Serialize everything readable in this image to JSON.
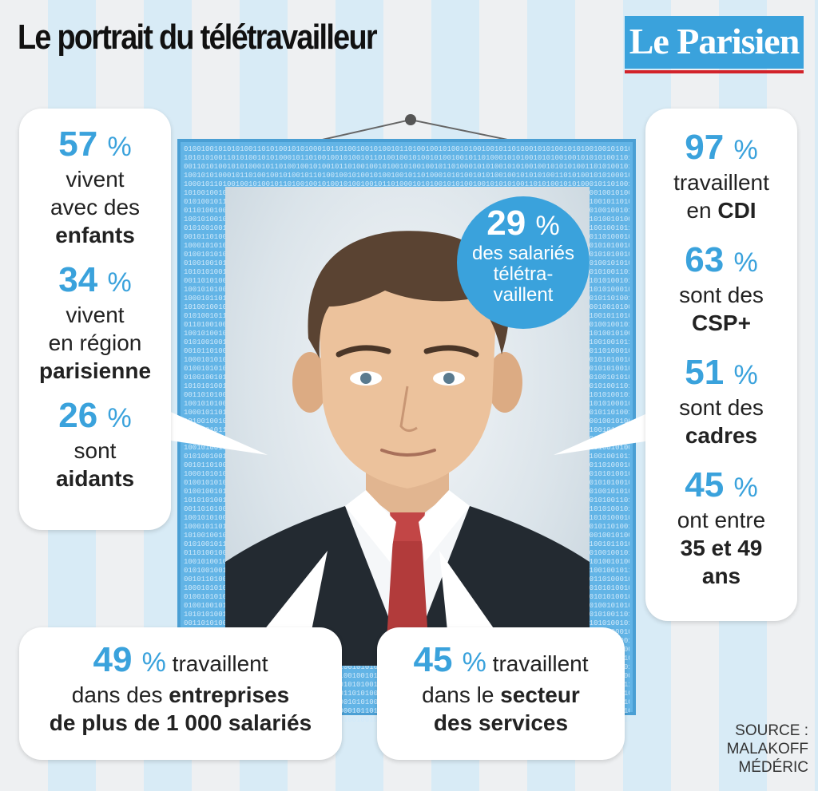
{
  "title": "Le portrait du télétravailleur",
  "logo": "Le Parisien",
  "source": [
    "SOURCE :",
    "MALAKOFF",
    "MÉDÉRIC"
  ],
  "binary_pattern": "0100100101010100110101001010100010110100100101001011010010010100101001001011010001010100101",
  "center_bubble": {
    "value": "29",
    "symbol": "%",
    "lines": [
      "des salariés",
      "télétra-",
      "vaillent"
    ]
  },
  "left_card": [
    {
      "value": "57",
      "symbol": "%",
      "lines": [
        "vivent",
        "avec des"
      ],
      "bold": "enfants"
    },
    {
      "value": "34",
      "symbol": "%",
      "lines": [
        "vivent",
        "en région"
      ],
      "bold": "parisienne"
    },
    {
      "value": "26",
      "symbol": "%",
      "lines": [
        "sont"
      ],
      "bold": "aidants"
    }
  ],
  "right_card": [
    {
      "value": "97",
      "symbol": "%",
      "line1": "travaillent",
      "pre": "en ",
      "bold": "CDI"
    },
    {
      "value": "63",
      "symbol": "%",
      "line1": "sont des",
      "pre": "",
      "bold": "CSP+"
    },
    {
      "value": "51",
      "symbol": "%",
      "line1": "sont des",
      "pre": "",
      "bold": "cadres"
    },
    {
      "value": "45",
      "symbol": "%",
      "line1": "ont entre",
      "pre": "",
      "bold": "35 et 49",
      "bold2": "ans"
    }
  ],
  "bottom_left": {
    "value": "49",
    "symbol": "%",
    "after": " travaillent",
    "line2_pre": "dans des ",
    "line2_bold": "entreprises",
    "line3_bold": "de plus de 1 000 salariés"
  },
  "bottom_right": {
    "value": "45",
    "symbol": "%",
    "after": " travaillent",
    "line2_pre": "dans le ",
    "line2_bold": "secteur",
    "line3_bold": "des services"
  },
  "colors": {
    "accent": "#3aa2dc",
    "frame": "#62b4e6",
    "logo_line": "#d2232a",
    "tie": "#b23b3b",
    "suit": "#232a31"
  }
}
